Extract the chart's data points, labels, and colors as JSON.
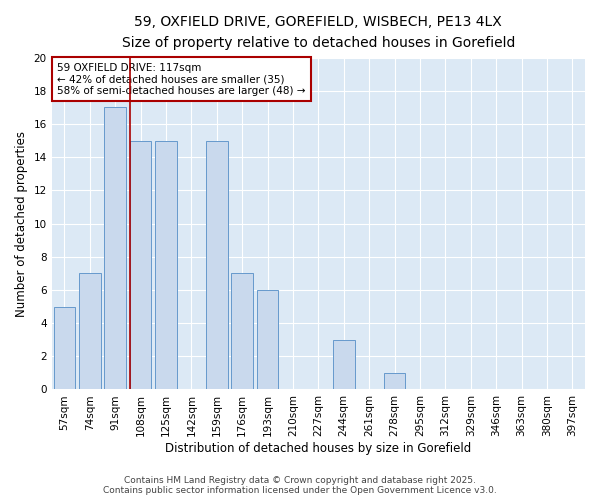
{
  "title_line1": "59, OXFIELD DRIVE, GOREFIELD, WISBECH, PE13 4LX",
  "title_line2": "Size of property relative to detached houses in Gorefield",
  "xlabel": "Distribution of detached houses by size in Gorefield",
  "ylabel": "Number of detached properties",
  "bar_labels": [
    "57sqm",
    "74sqm",
    "91sqm",
    "108sqm",
    "125sqm",
    "142sqm",
    "159sqm",
    "176sqm",
    "193sqm",
    "210sqm",
    "227sqm",
    "244sqm",
    "261sqm",
    "278sqm",
    "295sqm",
    "312sqm",
    "329sqm",
    "346sqm",
    "363sqm",
    "380sqm",
    "397sqm"
  ],
  "bar_values": [
    5,
    7,
    17,
    15,
    15,
    0,
    15,
    7,
    6,
    0,
    0,
    3,
    0,
    1,
    0,
    0,
    0,
    0,
    0,
    0,
    0
  ],
  "bar_color": "#c9d9ed",
  "bar_edgecolor": "#6699cc",
  "vline_x": 3.0,
  "vline_color": "#aa0000",
  "annotation_text": "59 OXFIELD DRIVE: 117sqm\n← 42% of detached houses are smaller (35)\n58% of semi-detached houses are larger (48) →",
  "annotation_box_facecolor": "#ffffff",
  "annotation_box_edgecolor": "#aa0000",
  "ylim": [
    0,
    20
  ],
  "yticks": [
    0,
    2,
    4,
    6,
    8,
    10,
    12,
    14,
    16,
    18,
    20
  ],
  "background_color": "#dce9f5",
  "grid_color": "#ffffff",
  "footer_text": "Contains HM Land Registry data © Crown copyright and database right 2025.\nContains public sector information licensed under the Open Government Licence v3.0.",
  "title_fontsize": 10,
  "subtitle_fontsize": 9,
  "axis_label_fontsize": 8.5,
  "tick_fontsize": 7.5,
  "annotation_fontsize": 7.5,
  "footer_fontsize": 6.5
}
